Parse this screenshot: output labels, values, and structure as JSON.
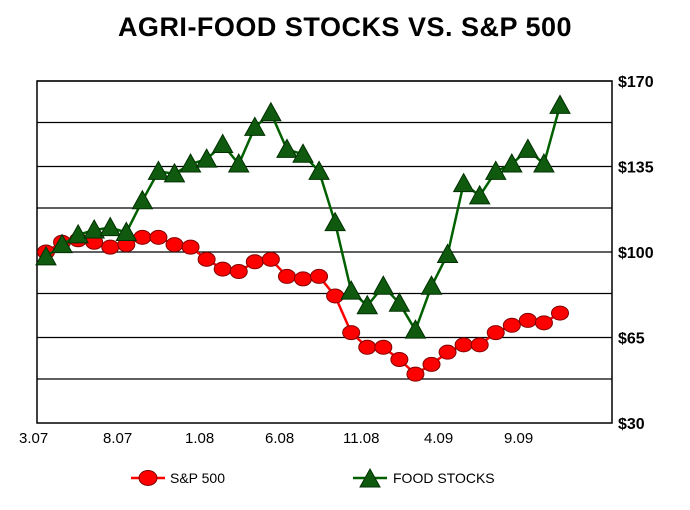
{
  "chart_data": {
    "type": "line",
    "title": "AGRI-FOOD STOCKS VS. S&P 500",
    "x_tick_labels": [
      "3.07",
      "8.07",
      "1.08",
      "6.08",
      "11.08",
      "4.09",
      "9.09"
    ],
    "y_tick_labels": [
      "$170",
      "$135",
      "$100",
      "$65",
      "$30"
    ],
    "ylim": [
      30,
      170
    ],
    "y_grid_values": [
      48,
      65,
      83,
      100,
      118,
      135,
      153,
      170
    ],
    "grid": true,
    "legend_position": "bottom",
    "series": [
      {
        "name": "S&P 500",
        "color": "#ff0000",
        "marker": "circle",
        "values": [
          100,
          104,
          105,
          104,
          102,
          103,
          106,
          106,
          103,
          102,
          97,
          93,
          92,
          96,
          97,
          90,
          89,
          90,
          82,
          67,
          61,
          61,
          56,
          50,
          54,
          59,
          62,
          62,
          67,
          70,
          72,
          71,
          75
        ]
      },
      {
        "name": "FOOD STOCKS",
        "color": "#006000",
        "marker": "triangle",
        "values": [
          98,
          103,
          107,
          109,
          110,
          108,
          121,
          133,
          132,
          136,
          138,
          144,
          136,
          151,
          157,
          142,
          140,
          133,
          112,
          84,
          78,
          86,
          79,
          68,
          86,
          99,
          128,
          123,
          133,
          136,
          142,
          136,
          160
        ]
      }
    ]
  },
  "colors": {
    "sp500_line": "#ff0000",
    "sp500_marker": "#ff0000",
    "food_line": "#006000",
    "food_marker": "#0f5a0f",
    "grid": "#000000"
  }
}
